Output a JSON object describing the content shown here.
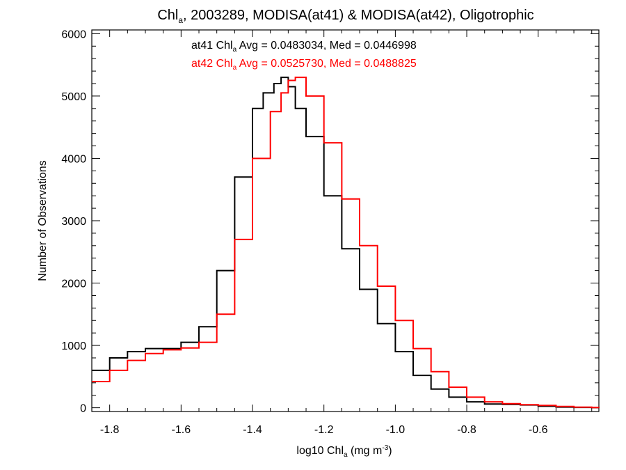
{
  "chart_data": {
    "type": "line",
    "title": {
      "pre": "Chl",
      "sub": "a",
      "post": ", 2003289, MODISA(at41) & MODISA(at42), Oligotrophic"
    },
    "xlabel": {
      "pre": "log10 Chl",
      "sub": "a",
      "mid": " (mg m",
      "sup": "-3",
      "post": ")"
    },
    "ylabel": "Number of Observations",
    "xlim": [
      -1.85,
      -0.43
    ],
    "ylim": [
      -60,
      6060
    ],
    "x_ticks": [
      -1.8,
      -1.6,
      -1.4,
      -1.2,
      -1.0,
      -0.8,
      -0.6
    ],
    "x_tick_labels": [
      "-1.8",
      "-1.6",
      "-1.4",
      "-1.2",
      "-1.0",
      "-0.8",
      "-0.6"
    ],
    "y_ticks": [
      0,
      1000,
      2000,
      3000,
      4000,
      5000,
      6000
    ],
    "y_tick_labels": [
      "0",
      "1000",
      "2000",
      "3000",
      "4000",
      "5000",
      "6000"
    ],
    "grid": false,
    "series": [
      {
        "name": "at41",
        "color": "#000000",
        "stat_label": {
          "pre": "at41 Chl",
          "sub": "a",
          "post": " Avg = 0.0483034, Med = 0.0446998"
        },
        "x": [
          -1.85,
          -1.8,
          -1.75,
          -1.7,
          -1.65,
          -1.6,
          -1.55,
          -1.5,
          -1.45,
          -1.4,
          -1.37,
          -1.34,
          -1.32,
          -1.3,
          -1.28,
          -1.25,
          -1.2,
          -1.15,
          -1.1,
          -1.05,
          -1.0,
          -0.95,
          -0.9,
          -0.85,
          -0.8,
          -0.75,
          -0.7,
          -0.65,
          -0.6,
          -0.55,
          -0.5,
          -0.45,
          -0.43
        ],
        "y": [
          600,
          800,
          900,
          950,
          950,
          1050,
          1300,
          2200,
          3700,
          4800,
          5050,
          5200,
          5300,
          5150,
          4800,
          4350,
          3400,
          2550,
          1900,
          1350,
          900,
          520,
          300,
          170,
          95,
          60,
          55,
          45,
          25,
          12,
          6,
          2,
          0
        ]
      },
      {
        "name": "at42",
        "color": "#ff0000",
        "stat_label": {
          "pre": "at42 Chl",
          "sub": "a",
          "post": " Avg = 0.0525730, Med = 0.0488825"
        },
        "x": [
          -1.85,
          -1.8,
          -1.75,
          -1.7,
          -1.65,
          -1.6,
          -1.55,
          -1.5,
          -1.45,
          -1.4,
          -1.35,
          -1.32,
          -1.3,
          -1.28,
          -1.25,
          -1.2,
          -1.15,
          -1.1,
          -1.05,
          -1.0,
          -0.95,
          -0.9,
          -0.85,
          -0.8,
          -0.75,
          -0.7,
          -0.65,
          -0.6,
          -0.55,
          -0.5,
          -0.45,
          -0.43
        ],
        "y": [
          420,
          600,
          760,
          870,
          930,
          960,
          1050,
          1500,
          2700,
          4000,
          4750,
          5050,
          5250,
          5300,
          5000,
          4250,
          3350,
          2600,
          1950,
          1400,
          950,
          580,
          330,
          170,
          95,
          65,
          50,
          38,
          20,
          10,
          4,
          0
        ]
      }
    ]
  }
}
